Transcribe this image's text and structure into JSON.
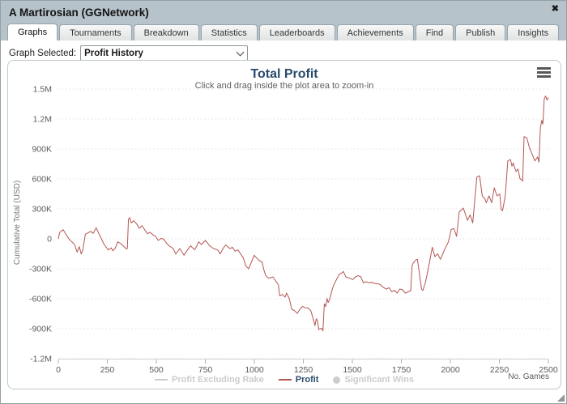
{
  "window": {
    "title": "A Martirosian (GGNetwork)",
    "close_glyph": "✖"
  },
  "tabs": [
    {
      "label": "Graphs",
      "active": true
    },
    {
      "label": "Tournaments",
      "active": false
    },
    {
      "label": "Breakdown",
      "active": false
    },
    {
      "label": "Statistics",
      "active": false
    },
    {
      "label": "Leaderboards",
      "active": false
    },
    {
      "label": "Achievements",
      "active": false
    },
    {
      "label": "Find",
      "active": false
    },
    {
      "label": "Publish",
      "active": false
    },
    {
      "label": "Insights",
      "active": false
    }
  ],
  "graph_selector": {
    "label": "Graph Selected:",
    "value": "Profit History"
  },
  "colors": {
    "header_bg": "#b6c3ca",
    "profit_line": "#b25652",
    "title_text": "#274b6d",
    "disabled_legend": "#cccccc",
    "gridline": "#e0e0e0",
    "axis_line": "#ccd2d8"
  },
  "chart_data": {
    "type": "line",
    "title": "Total Profit",
    "subtitle": "Click and drag inside the plot area to zoom-in",
    "xlabel": "No. Games",
    "ylabel": "Cumulative Total (USD)",
    "xlim": [
      0,
      2500
    ],
    "ylim": [
      -1200000,
      1500000
    ],
    "grid": "horizontal dotted",
    "legend_position": "bottom center",
    "xticks": [
      0,
      250,
      500,
      750,
      1000,
      1250,
      1500,
      1750,
      2000,
      2250,
      2500
    ],
    "yticks": [
      {
        "value": 1500000,
        "label": "1.5M"
      },
      {
        "value": 1200000,
        "label": "1.2M"
      },
      {
        "value": 900000,
        "label": "900K"
      },
      {
        "value": 600000,
        "label": "600K"
      },
      {
        "value": 300000,
        "label": "300K"
      },
      {
        "value": 0,
        "label": "0"
      },
      {
        "value": -300000,
        "label": "-300K"
      },
      {
        "value": -600000,
        "label": "-600K"
      },
      {
        "value": -900000,
        "label": "-900K"
      },
      {
        "value": -1200000,
        "label": "-1.2M"
      }
    ],
    "legend": [
      {
        "label": "Profit Excluding Rake",
        "swatch": "line",
        "color": "#cccccc",
        "text_color": "#cccccc",
        "enabled": false
      },
      {
        "label": "Profit",
        "swatch": "line",
        "color": "#b25652",
        "text_color": "#274b6d",
        "enabled": true
      },
      {
        "label": "Significant Wins",
        "swatch": "dot",
        "color": "#cccccc",
        "text_color": "#cccccc",
        "enabled": false
      }
    ],
    "series": [
      {
        "name": "Profit",
        "color": "#b25652",
        "y_unit": "USD",
        "points": [
          [
            0,
            0
          ],
          [
            7,
            65000
          ],
          [
            25,
            92000
          ],
          [
            41,
            38000
          ],
          [
            55,
            -3000
          ],
          [
            69,
            -30000
          ],
          [
            83,
            -57000
          ],
          [
            96,
            -132000
          ],
          [
            107,
            -78000
          ],
          [
            117,
            -152000
          ],
          [
            125,
            -110000
          ],
          [
            138,
            46000
          ],
          [
            152,
            60000
          ],
          [
            165,
            75000
          ],
          [
            178,
            55000
          ],
          [
            193,
            111000
          ],
          [
            205,
            60000
          ],
          [
            214,
            24000
          ],
          [
            234,
            -57000
          ],
          [
            255,
            -111000
          ],
          [
            270,
            -90000
          ],
          [
            278,
            -120000
          ],
          [
            290,
            -95000
          ],
          [
            303,
            -30000
          ],
          [
            317,
            -45000
          ],
          [
            331,
            -70000
          ],
          [
            348,
            -103000
          ],
          [
            352,
            -95000
          ],
          [
            358,
            195000
          ],
          [
            365,
            213000
          ],
          [
            372,
            160000
          ],
          [
            385,
            181000
          ],
          [
            399,
            150000
          ],
          [
            413,
            105000
          ],
          [
            427,
            132000
          ],
          [
            441,
            90000
          ],
          [
            455,
            51000
          ],
          [
            468,
            65000
          ],
          [
            483,
            40000
          ],
          [
            496,
            24000
          ],
          [
            510,
            -16000
          ],
          [
            524,
            5000
          ],
          [
            537,
            -3000
          ],
          [
            551,
            -40000
          ],
          [
            565,
            -70000
          ],
          [
            586,
            -97000
          ],
          [
            599,
            -152000
          ],
          [
            620,
            -97000
          ],
          [
            641,
            -165000
          ],
          [
            654,
            -124000
          ],
          [
            675,
            -70000
          ],
          [
            696,
            -111000
          ],
          [
            716,
            -30000
          ],
          [
            730,
            -57000
          ],
          [
            751,
            -16000
          ],
          [
            772,
            -70000
          ],
          [
            792,
            -97000
          ],
          [
            813,
            -111000
          ],
          [
            826,
            -152000
          ],
          [
            840,
            -97000
          ],
          [
            854,
            -62000
          ],
          [
            875,
            -97000
          ],
          [
            888,
            -84000
          ],
          [
            902,
            -124000
          ],
          [
            916,
            -111000
          ],
          [
            930,
            -152000
          ],
          [
            944,
            -192000
          ],
          [
            957,
            -273000
          ],
          [
            971,
            -300000
          ],
          [
            985,
            -233000
          ],
          [
            999,
            -165000
          ],
          [
            1012,
            -192000
          ],
          [
            1026,
            -219000
          ],
          [
            1040,
            -233000
          ],
          [
            1047,
            -300000
          ],
          [
            1058,
            -368000
          ],
          [
            1074,
            -395000
          ],
          [
            1095,
            -381000
          ],
          [
            1109,
            -422000
          ],
          [
            1123,
            -462000
          ],
          [
            1129,
            -570000
          ],
          [
            1143,
            -557000
          ],
          [
            1157,
            -584000
          ],
          [
            1164,
            -543000
          ],
          [
            1178,
            -597000
          ],
          [
            1191,
            -705000
          ],
          [
            1205,
            -719000
          ],
          [
            1219,
            -746000
          ],
          [
            1233,
            -705000
          ],
          [
            1246,
            -678000
          ],
          [
            1260,
            -690000
          ],
          [
            1274,
            -692000
          ],
          [
            1288,
            -719000
          ],
          [
            1302,
            -813000
          ],
          [
            1309,
            -868000
          ],
          [
            1316,
            -800000
          ],
          [
            1322,
            -820000
          ],
          [
            1329,
            -908000
          ],
          [
            1343,
            -894000
          ],
          [
            1350,
            -922000
          ],
          [
            1357,
            -651000
          ],
          [
            1364,
            -678000
          ],
          [
            1371,
            -597000
          ],
          [
            1377,
            -638000
          ],
          [
            1384,
            -610000
          ],
          [
            1398,
            -503000
          ],
          [
            1405,
            -462000
          ],
          [
            1419,
            -408000
          ],
          [
            1433,
            -354000
          ],
          [
            1447,
            -340000
          ],
          [
            1454,
            -327000
          ],
          [
            1467,
            -381000
          ],
          [
            1488,
            -395000
          ],
          [
            1502,
            -408000
          ],
          [
            1516,
            -381000
          ],
          [
            1529,
            -368000
          ],
          [
            1543,
            -381000
          ],
          [
            1557,
            -440000
          ],
          [
            1570,
            -430000
          ],
          [
            1584,
            -440000
          ],
          [
            1598,
            -435000
          ],
          [
            1611,
            -445000
          ],
          [
            1625,
            -450000
          ],
          [
            1639,
            -454000
          ],
          [
            1660,
            -489000
          ],
          [
            1674,
            -503000
          ],
          [
            1687,
            -489000
          ],
          [
            1701,
            -530000
          ],
          [
            1715,
            -516000
          ],
          [
            1729,
            -543000
          ],
          [
            1742,
            -503000
          ],
          [
            1756,
            -510000
          ],
          [
            1770,
            -543000
          ],
          [
            1784,
            -530000
          ],
          [
            1798,
            -520000
          ],
          [
            1804,
            -276000
          ],
          [
            1811,
            -240000
          ],
          [
            1825,
            -210000
          ],
          [
            1832,
            -205000
          ],
          [
            1839,
            -300000
          ],
          [
            1853,
            -503000
          ],
          [
            1860,
            -516000
          ],
          [
            1873,
            -435000
          ],
          [
            1887,
            -300000
          ],
          [
            1908,
            -84000
          ],
          [
            1921,
            -178000
          ],
          [
            1935,
            -150000
          ],
          [
            1949,
            -205000
          ],
          [
            1970,
            -111000
          ],
          [
            1990,
            -30000
          ],
          [
            2004,
            92000
          ],
          [
            2018,
            105000
          ],
          [
            2032,
            24000
          ],
          [
            2045,
            268000
          ],
          [
            2066,
            308000
          ],
          [
            2087,
            186000
          ],
          [
            2101,
            241000
          ],
          [
            2114,
            160000
          ],
          [
            2135,
            619000
          ],
          [
            2149,
            632000
          ],
          [
            2163,
            430000
          ],
          [
            2176,
            403000
          ],
          [
            2183,
            362000
          ],
          [
            2197,
            430000
          ],
          [
            2211,
            362000
          ],
          [
            2224,
            511000
          ],
          [
            2238,
            430000
          ],
          [
            2252,
            450000
          ],
          [
            2259,
            294000
          ],
          [
            2266,
            281000
          ],
          [
            2280,
            430000
          ],
          [
            2293,
            781000
          ],
          [
            2307,
            794000
          ],
          [
            2314,
            727000
          ],
          [
            2321,
            760000
          ],
          [
            2335,
            673000
          ],
          [
            2345,
            700000
          ],
          [
            2355,
            605000
          ],
          [
            2369,
            578000
          ],
          [
            2376,
            1024000
          ],
          [
            2390,
            1011000
          ],
          [
            2403,
            916000
          ],
          [
            2417,
            849000
          ],
          [
            2431,
            781000
          ],
          [
            2445,
            820000
          ],
          [
            2452,
            768000
          ],
          [
            2459,
            1105000
          ],
          [
            2466,
            1186000
          ],
          [
            2472,
            1150000
          ],
          [
            2479,
            1403000
          ],
          [
            2486,
            1430000
          ],
          [
            2493,
            1389000
          ],
          [
            2500,
            1416000
          ]
        ]
      }
    ]
  }
}
